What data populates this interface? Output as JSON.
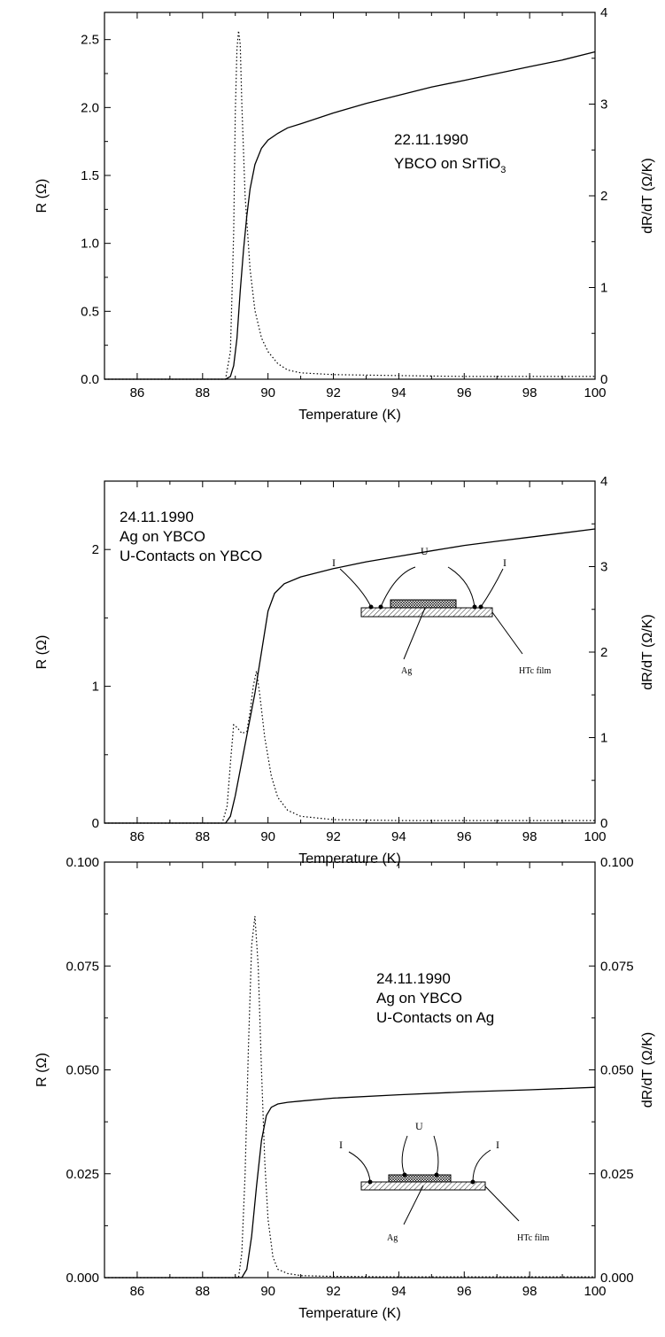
{
  "chart_data": [
    {
      "type": "line",
      "xlabel": "Temperature (K)",
      "ylabel": "R (Ω)",
      "y2label": "dR/dT (Ω/K)",
      "xlim": [
        85,
        100
      ],
      "ylim": [
        0,
        2.7
      ],
      "y2lim": [
        0,
        4
      ],
      "xticks": [
        "86",
        "88",
        "90",
        "92",
        "94",
        "96",
        "98",
        "100"
      ],
      "yticks": [
        "0.0",
        "0.5",
        "1.0",
        "1.5",
        "2.0",
        "2.5"
      ],
      "y2ticks": [
        "0",
        "1",
        "2",
        "3",
        "4"
      ],
      "annotation": [
        "22.11.1990",
        "YBCO on SrTiO",
        "3"
      ],
      "series": [
        {
          "axis": "left",
          "style": "solid",
          "x": [
            85,
            88.7,
            88.85,
            88.95,
            89.05,
            89.15,
            89.25,
            89.35,
            89.45,
            89.6,
            89.8,
            90.0,
            90.3,
            90.6,
            91.0,
            91.5,
            92,
            93,
            94,
            95,
            96,
            97,
            98,
            99,
            100
          ],
          "y": [
            0,
            0,
            0.02,
            0.1,
            0.3,
            0.65,
            0.95,
            1.2,
            1.4,
            1.58,
            1.7,
            1.76,
            1.81,
            1.85,
            1.88,
            1.92,
            1.96,
            2.03,
            2.09,
            2.15,
            2.2,
            2.25,
            2.3,
            2.35,
            2.41
          ]
        },
        {
          "axis": "right",
          "style": "dotted",
          "x": [
            85,
            88.7,
            88.85,
            88.95,
            89.0,
            89.05,
            89.1,
            89.15,
            89.2,
            89.3,
            89.45,
            89.6,
            89.8,
            90.0,
            90.3,
            90.6,
            91.0,
            92,
            94,
            96,
            98,
            100
          ],
          "y": [
            0,
            0,
            0.3,
            1.6,
            2.9,
            3.6,
            3.8,
            3.65,
            3.0,
            2.0,
            1.2,
            0.75,
            0.45,
            0.3,
            0.17,
            0.1,
            0.07,
            0.05,
            0.04,
            0.03,
            0.03,
            0.03
          ]
        }
      ]
    },
    {
      "type": "line",
      "xlabel": "Temperature (K)",
      "ylabel": "R (Ω)",
      "y2label": "dR/dT (Ω/K)",
      "xlim": [
        85,
        100
      ],
      "ylim": [
        0,
        2.5
      ],
      "y2lim": [
        0,
        4
      ],
      "xticks": [
        "86",
        "88",
        "90",
        "92",
        "94",
        "96",
        "98",
        "100"
      ],
      "yticks": [
        "0",
        "1",
        "2"
      ],
      "y2ticks": [
        "0",
        "1",
        "2",
        "3",
        "4"
      ],
      "annotation": [
        "24.11.1990",
        "Ag on YBCO",
        "U-Contacts on YBCO"
      ],
      "inset_labels": {
        "current_left": "I",
        "current_right": "I",
        "voltage": "U",
        "layer": "Ag",
        "film": "HTc film"
      },
      "series": [
        {
          "axis": "left",
          "style": "solid",
          "x": [
            85,
            88.7,
            88.85,
            89.0,
            89.2,
            89.4,
            89.6,
            89.8,
            90.0,
            90.2,
            90.5,
            91,
            92,
            93,
            94,
            95,
            96,
            97,
            98,
            99,
            100
          ],
          "y": [
            0,
            0,
            0.05,
            0.2,
            0.45,
            0.7,
            0.95,
            1.25,
            1.55,
            1.68,
            1.75,
            1.8,
            1.86,
            1.91,
            1.95,
            1.99,
            2.03,
            2.06,
            2.09,
            2.12,
            2.15
          ]
        },
        {
          "axis": "right",
          "style": "dotted",
          "x": [
            85,
            88.6,
            88.75,
            88.85,
            88.95,
            89.05,
            89.2,
            89.35,
            89.45,
            89.55,
            89.65,
            89.75,
            89.9,
            90.1,
            90.3,
            90.6,
            91.0,
            92,
            94,
            96,
            98,
            100
          ],
          "y": [
            0,
            0,
            0.2,
            0.7,
            1.15,
            1.12,
            1.05,
            1.07,
            1.3,
            1.6,
            1.78,
            1.5,
            1.0,
            0.55,
            0.3,
            0.15,
            0.08,
            0.04,
            0.03,
            0.03,
            0.03,
            0.03
          ]
        }
      ]
    },
    {
      "type": "line",
      "xlabel": "Temperature (K)",
      "ylabel": "R (Ω)",
      "y2label": "dR/dT (Ω/K)",
      "xlim": [
        85,
        100
      ],
      "ylim": [
        0,
        0.1
      ],
      "y2lim": [
        0,
        0.1
      ],
      "xticks": [
        "86",
        "88",
        "90",
        "92",
        "94",
        "96",
        "98",
        "100"
      ],
      "yticks": [
        "0.000",
        "0.025",
        "0.050",
        "0.075",
        "0.100"
      ],
      "y2ticks": [
        "0.000",
        "0.025",
        "0.050",
        "0.075",
        "0.100"
      ],
      "annotation": [
        "24.11.1990",
        "Ag on YBCO",
        "U-Contacts on Ag"
      ],
      "inset_labels": {
        "current_left": "I",
        "current_right": "I",
        "voltage": "U",
        "layer": "Ag",
        "film": "HTc film"
      },
      "series": [
        {
          "axis": "left",
          "style": "solid",
          "x": [
            85,
            89.2,
            89.35,
            89.5,
            89.65,
            89.8,
            89.95,
            90.1,
            90.3,
            90.6,
            91,
            92,
            94,
            96,
            98,
            100
          ],
          "y": [
            0,
            0,
            0.002,
            0.01,
            0.022,
            0.033,
            0.039,
            0.041,
            0.0418,
            0.0422,
            0.0425,
            0.0432,
            0.044,
            0.0447,
            0.0452,
            0.0458
          ]
        },
        {
          "axis": "right",
          "style": "dotted",
          "x": [
            85,
            89.1,
            89.2,
            89.3,
            89.4,
            89.5,
            89.6,
            89.7,
            89.8,
            89.9,
            90.0,
            90.15,
            90.3,
            90.6,
            91,
            92,
            94,
            96,
            98,
            100
          ],
          "y": [
            0,
            0,
            0.006,
            0.025,
            0.055,
            0.08,
            0.087,
            0.075,
            0.05,
            0.028,
            0.014,
            0.005,
            0.002,
            0.001,
            0.0005,
            0.0003,
            0.0002,
            0.0002,
            0.0002,
            0.0002
          ]
        }
      ]
    }
  ]
}
